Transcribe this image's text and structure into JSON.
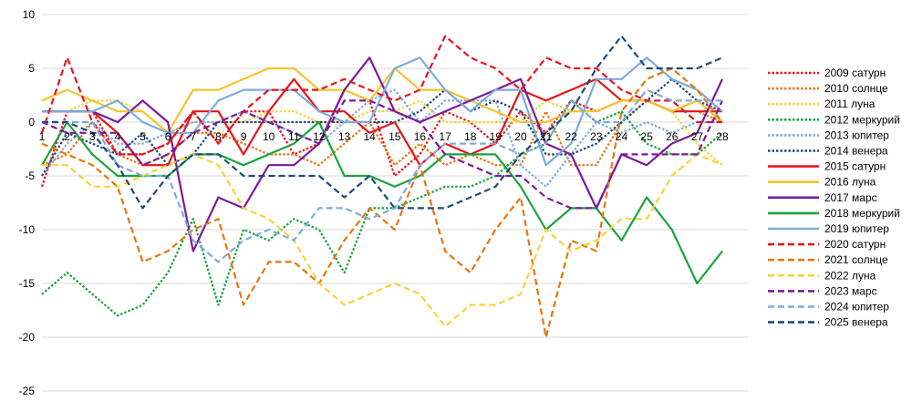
{
  "chart_data": {
    "type": "line",
    "title": "",
    "xlabel": "",
    "ylabel": "",
    "ylim": [
      -25,
      10
    ],
    "yticks": [
      10,
      5,
      0,
      -5,
      -10,
      -15,
      -20,
      -25
    ],
    "x": [
      1,
      2,
      3,
      4,
      5,
      6,
      7,
      8,
      9,
      10,
      11,
      12,
      13,
      14,
      15,
      16,
      17,
      18,
      19,
      20,
      21,
      22,
      23,
      24,
      25,
      26,
      27,
      28
    ],
    "x_labels": [
      "1",
      "2",
      "3",
      "4",
      "5",
      "6",
      "7",
      "8",
      "9",
      "10",
      "11",
      "12",
      "13",
      "14",
      "15",
      "16",
      "17",
      "18",
      "19",
      "20",
      "21",
      "22",
      "23",
      "24",
      "25",
      "26",
      "27",
      "28"
    ],
    "grid": "horizontal",
    "legend_position": "right",
    "series": [
      {
        "name": "2009 сатурн",
        "color": "#e8141b",
        "dash": "dot",
        "values": [
          -6,
          1,
          1,
          -3,
          -3,
          -2,
          1,
          -2,
          1,
          1,
          -3,
          -2,
          3,
          2,
          -5,
          -3,
          1,
          0,
          -2,
          1,
          -1,
          2,
          1,
          2,
          2,
          1,
          2,
          0
        ]
      },
      {
        "name": "2010 солнце",
        "color": "#e8760b",
        "dash": "dot",
        "values": [
          -4,
          -3,
          0,
          -3,
          -4,
          -3,
          -1,
          -1,
          -2,
          -3,
          -3,
          -4,
          -2,
          0,
          -4,
          -2,
          -4,
          -3,
          -4,
          -4,
          1,
          -4,
          -4,
          0,
          2,
          1,
          1,
          0
        ]
      },
      {
        "name": "2011 луна",
        "color": "#f9d23a",
        "dash": "dot",
        "values": [
          1,
          1,
          2,
          2,
          1,
          -1,
          0,
          0,
          0,
          1,
          1,
          0,
          0,
          1,
          1,
          2,
          0,
          0,
          0,
          0,
          2,
          1,
          1,
          2,
          2,
          1,
          -2,
          -4
        ]
      },
      {
        "name": "2012 меркурий",
        "color": "#1aa33c",
        "dash": "dot",
        "values": [
          -16,
          -14,
          -16,
          -18,
          -17,
          -14,
          -9,
          -17,
          -10,
          -11,
          -9,
          -10,
          -14,
          -8,
          -8,
          -7,
          -6,
          -6,
          -5,
          -3,
          -2,
          2,
          0,
          1,
          -2,
          -3,
          -3,
          -1
        ]
      },
      {
        "name": "2013 юпитер",
        "color": "#7eaadf",
        "dash": "dot",
        "values": [
          -5,
          -2,
          0,
          -2,
          -2,
          -1,
          0,
          0,
          1,
          0,
          -1,
          -2,
          0,
          2,
          3,
          0,
          2,
          2,
          2,
          -4,
          -6,
          -3,
          0,
          -1,
          0,
          -1,
          0,
          0
        ]
      },
      {
        "name": "2014 венера",
        "color": "#1f4a7a",
        "dash": "dot",
        "values": [
          -5,
          -1,
          -2,
          -3,
          -1,
          -4,
          -3,
          0,
          0,
          0,
          0,
          0,
          0,
          0,
          0,
          1,
          3,
          1,
          2,
          1,
          -3,
          -3,
          -2,
          0,
          2,
          4,
          2,
          1
        ]
      },
      {
        "name": "2015 сатурн",
        "color": "#e8141b",
        "dash": "solid",
        "values": [
          1,
          1,
          1,
          -1,
          -4,
          -4,
          1,
          1,
          -3,
          1,
          4,
          1,
          1,
          -1,
          0,
          -4,
          -2,
          -3,
          -2,
          3,
          2,
          3,
          4,
          2,
          2,
          1,
          1,
          1
        ]
      },
      {
        "name": "2016 луна",
        "color": "#f5c52a",
        "dash": "solid",
        "values": [
          2,
          3,
          2,
          1,
          1,
          -1,
          3,
          3,
          4,
          5,
          5,
          3,
          3,
          2,
          5,
          3,
          3,
          2,
          1,
          0,
          0,
          1,
          1,
          2,
          2,
          1,
          2,
          0
        ]
      },
      {
        "name": "2017 марс",
        "color": "#7b1a9c",
        "dash": "solid",
        "values": [
          1,
          1,
          1,
          0,
          2,
          0,
          -12,
          -7,
          -8,
          -4,
          -4,
          -2,
          3,
          6,
          1,
          0,
          1,
          2,
          3,
          4,
          -2,
          -3,
          -8,
          -3,
          -4,
          -2,
          -1,
          4
        ]
      },
      {
        "name": "2018 меркурий",
        "color": "#1aa33c",
        "dash": "solid",
        "values": [
          -4,
          0,
          -3,
          -5,
          -5,
          -5,
          -3,
          -3,
          -4,
          -3,
          -2,
          0,
          -5,
          -5,
          -6,
          -5,
          -3,
          -3,
          -3,
          -6,
          -10,
          -8,
          -8,
          -11,
          -7,
          -10,
          -15,
          -12
        ]
      },
      {
        "name": "2019 юпитер",
        "color": "#7eaadf",
        "dash": "solid",
        "values": [
          1,
          1,
          1,
          2,
          0,
          -1,
          -1,
          2,
          3,
          3,
          3,
          1,
          0,
          0,
          5,
          6,
          3,
          1,
          3,
          3,
          -4,
          -2,
          4,
          4,
          6,
          4,
          3,
          1
        ]
      },
      {
        "name": "2020 сатурн",
        "color": "#e8141b",
        "dash": "dash",
        "values": [
          -1,
          6,
          0,
          -3,
          -3,
          -2,
          1,
          -2,
          1,
          3,
          3,
          3,
          4,
          3,
          2,
          3,
          8,
          6,
          5,
          3,
          6,
          5,
          5,
          3,
          2,
          2,
          0,
          0
        ]
      },
      {
        "name": "2021 солнце",
        "color": "#e8760b",
        "dash": "dash",
        "values": [
          -2,
          -3,
          -4,
          -6,
          -13,
          -12,
          -10,
          -9,
          -17,
          -13,
          -13,
          -15,
          -11,
          -8,
          -10,
          -4,
          -12,
          -14,
          -10,
          -7,
          -20,
          -11,
          -12,
          1,
          4,
          5,
          3,
          0
        ]
      },
      {
        "name": "2022 луна",
        "color": "#f9d23a",
        "dash": "dash",
        "values": [
          -4,
          -4,
          -6,
          -6,
          -5,
          -4,
          -3,
          -4,
          -8,
          -9,
          -11,
          -15,
          -17,
          -16,
          -15,
          -16,
          -19,
          -17,
          -17,
          -16,
          -10,
          -12,
          -11,
          -9,
          -9,
          -5,
          -3,
          -4
        ]
      },
      {
        "name": "2023 марс",
        "color": "#7b1a9c",
        "dash": "dash",
        "values": [
          0,
          -1,
          -1,
          -1,
          -4,
          -3,
          -1,
          0,
          1,
          0,
          -1,
          -2,
          2,
          2,
          1,
          0,
          -3,
          -4,
          -5,
          -5,
          -7,
          -8,
          -8,
          -3,
          -3,
          -3,
          -3,
          2
        ]
      },
      {
        "name": "2024 юпитер",
        "color": "#7eaadf",
        "dash": "dash",
        "values": [
          0,
          0,
          0,
          -4,
          -5,
          -5,
          -11,
          -13,
          -11,
          -10,
          -11,
          -8,
          -8,
          -9,
          -8,
          -4,
          -2,
          -2,
          -2,
          -3,
          -2,
          2,
          0,
          0,
          3,
          2,
          2,
          2
        ]
      },
      {
        "name": "2025 венера",
        "color": "#1f4a7a",
        "dash": "dash",
        "values": [
          0,
          0,
          -1,
          -4,
          -8,
          -5,
          -3,
          -3,
          -5,
          -5,
          -5,
          -5,
          -7,
          -5,
          -8,
          -8,
          -8,
          -7,
          -6,
          -3,
          -1,
          1,
          5,
          8,
          5,
          5,
          5,
          6
        ]
      }
    ]
  }
}
